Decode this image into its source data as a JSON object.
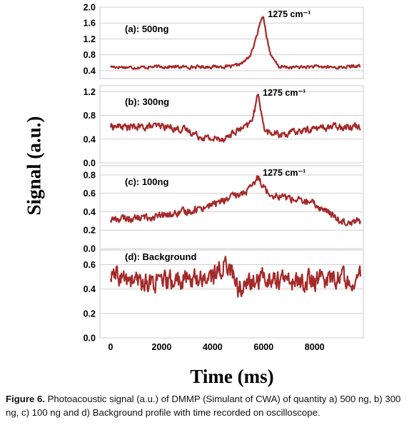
{
  "figure": {
    "ylabel": "Signal (a.u.)",
    "xlabel": "Time (ms)",
    "line_color": "#a52a2a",
    "caption_label": "Figure 6.",
    "caption_text": " Photoacoustic signal (a.u.) of DMMP (Simulant of CWA) of quantity a) 500 ng, b) 300 ng,  c)  100 ng and d) Background profile with time recorded on oscilloscope."
  },
  "chart_data": [
    {
      "type": "line",
      "panel_label": "(a): 500ng",
      "annotation": "1275 cm⁻¹",
      "xlim": [
        0,
        9800
      ],
      "ylim": [
        0.2,
        2.0
      ],
      "yticks": [
        0.4,
        0.8,
        1.2,
        1.6,
        2.0
      ],
      "ytick_labels": [
        "0.4",
        "0.8",
        "1.2",
        "1.6",
        "2.0"
      ],
      "grid": "horizontal",
      "series": [
        {
          "x": [
            0,
            1000,
            2000,
            3000,
            4000,
            4800,
            5200,
            5500,
            5700,
            5900,
            6000,
            6100,
            6300,
            6600,
            7000,
            8000,
            9000,
            9800
          ],
          "y": [
            0.5,
            0.48,
            0.5,
            0.49,
            0.5,
            0.5,
            0.6,
            0.8,
            1.2,
            1.7,
            1.78,
            1.3,
            0.75,
            0.5,
            0.48,
            0.5,
            0.48,
            0.52
          ]
        }
      ]
    },
    {
      "type": "line",
      "panel_label": "(b): 300ng",
      "annotation": "1275 cm⁻¹",
      "xlim": [
        0,
        9800
      ],
      "ylim": [
        0.0,
        1.3
      ],
      "yticks": [
        0.0,
        0.4,
        0.8,
        1.2
      ],
      "ytick_labels": [
        "0.0",
        "0.4",
        "0.8",
        "1.2"
      ],
      "grid": "horizontal",
      "series": [
        {
          "x": [
            0,
            1000,
            2000,
            3000,
            3500,
            4000,
            4500,
            5000,
            5400,
            5600,
            5800,
            5900,
            6000,
            6200,
            6600,
            7000,
            8000,
            9000,
            9800
          ],
          "y": [
            0.62,
            0.6,
            0.62,
            0.55,
            0.45,
            0.4,
            0.42,
            0.55,
            0.62,
            0.8,
            1.18,
            0.9,
            0.6,
            0.5,
            0.48,
            0.5,
            0.58,
            0.62,
            0.62
          ]
        }
      ]
    },
    {
      "type": "line",
      "panel_label": "(c): 100ng",
      "annotation": "1275 cm⁻¹",
      "xlim": [
        0,
        9800
      ],
      "ylim": [
        0.0,
        0.9
      ],
      "yticks": [
        0.0,
        0.2,
        0.4,
        0.6,
        0.8
      ],
      "ytick_labels": [
        "0.0",
        "0.2",
        "0.4",
        "0.6",
        "0.8"
      ],
      "grid": "horizontal",
      "series": [
        {
          "x": [
            0,
            1000,
            2000,
            3000,
            4000,
            5000,
            5500,
            5800,
            6000,
            6200,
            7000,
            8000,
            8500,
            9000,
            9800
          ],
          "y": [
            0.32,
            0.33,
            0.35,
            0.4,
            0.48,
            0.58,
            0.65,
            0.78,
            0.68,
            0.6,
            0.55,
            0.48,
            0.4,
            0.3,
            0.3
          ]
        }
      ]
    },
    {
      "type": "line",
      "panel_label": "(d): Background",
      "xlim": [
        0,
        9800
      ],
      "ylim": [
        0.0,
        0.72
      ],
      "yticks": [
        0.0,
        0.2,
        0.4,
        0.6
      ],
      "ytick_labels": [
        "0.0",
        "0.2",
        "0.4",
        "0.6"
      ],
      "xticks": [
        0,
        2000,
        4000,
        6000,
        8000
      ],
      "xtick_labels": [
        "0",
        "2000",
        "4000",
        "6000",
        "8000"
      ],
      "grid": "horizontal",
      "series": [
        {
          "x": [
            0,
            1000,
            2000,
            3000,
            4000,
            4600,
            5000,
            6000,
            7000,
            8000,
            9000,
            9800
          ],
          "y": [
            0.5,
            0.46,
            0.45,
            0.48,
            0.5,
            0.62,
            0.4,
            0.5,
            0.46,
            0.47,
            0.5,
            0.48
          ]
        }
      ]
    }
  ]
}
